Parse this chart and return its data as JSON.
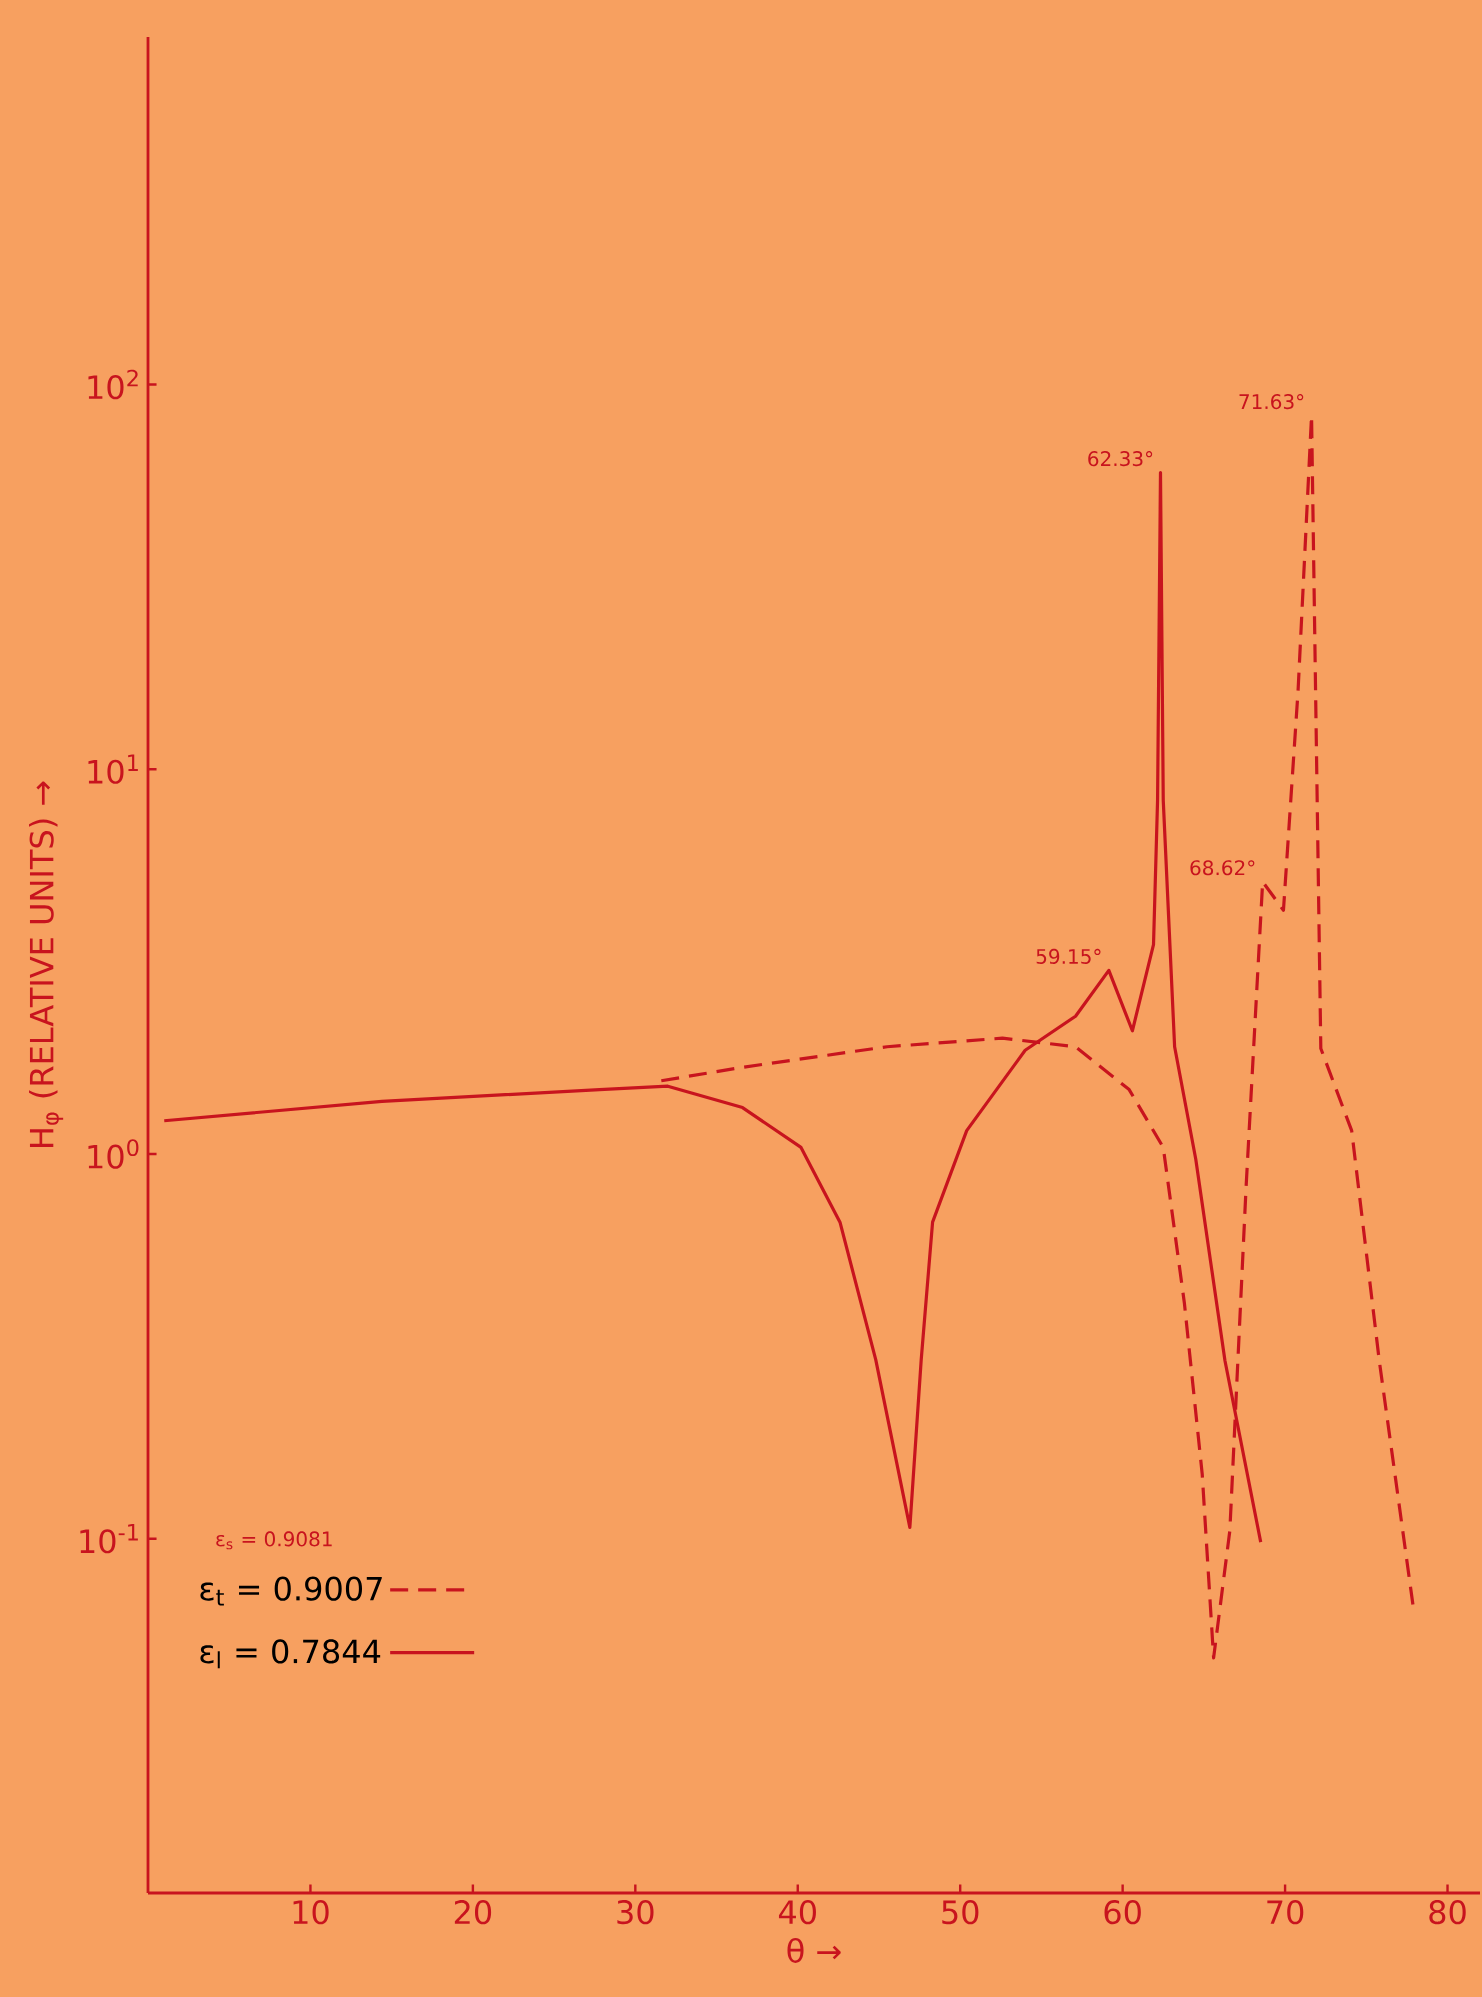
{
  "chart_data": {
    "type": "line",
    "xlabel": "θ →",
    "ylabel": "H$_{φ}$ (RELATIVE UNITS) →",
    "log": "y",
    "xlim": [
      0,
      82
    ],
    "xticks": [
      10,
      20,
      30,
      40,
      50,
      60,
      70,
      80
    ],
    "ylim": [
      0.012,
      800
    ],
    "yticks": [
      {
        "value": 0.1,
        "label": "10$^{-1}$"
      },
      {
        "value": 1,
        "label": "10$^{0}$"
      },
      {
        "value": 10,
        "label": "10$^{1}$"
      },
      {
        "value": 100,
        "label": "10$^{2}$"
      }
    ],
    "legend": "bottom left",
    "series": [
      {
        "name": "ε$_{t}$ = 0.9007",
        "color": "#c8141e",
        "line_style": "dashed",
        "x": [
          31.6,
          36.6,
          45.5,
          52.6,
          57.1,
          60.4,
          62.5,
          63.8,
          64.9,
          65.6,
          66.6,
          67.6,
          68.62,
          69.9,
          70.8,
          71.63,
          72.2,
          74.1,
          75.8,
          77.9
        ],
        "values": [
          1.55,
          1.68,
          1.9,
          2.0,
          1.9,
          1.47,
          1.04,
          0.41,
          0.147,
          0.049,
          0.105,
          0.82,
          5.1,
          4.3,
          16,
          83,
          1.88,
          1.15,
          0.29,
          0.066
        ]
      },
      {
        "name": "ε$_{l}$ = 0.7844",
        "color": "#c8141e",
        "line_style": "solid",
        "x": [
          1.0,
          14.4,
          27.8,
          32.0,
          36.6,
          40.2,
          42.6,
          44.8,
          46.9,
          47.6,
          48.3,
          50.4,
          54.0,
          57.1,
          59.15,
          60.6,
          61.9,
          62.15,
          62.33,
          62.5,
          63.2,
          64.5,
          66.3,
          68.5
        ],
        "values": [
          1.22,
          1.37,
          1.47,
          1.5,
          1.32,
          1.04,
          0.665,
          0.292,
          0.107,
          0.292,
          0.665,
          1.15,
          1.86,
          2.28,
          3.0,
          2.09,
          3.5,
          8.3,
          59,
          8.3,
          1.9,
          0.97,
          0.29,
          0.098
        ]
      }
    ],
    "annotations": [
      "ε$_{s}$ = 0.9081",
      {
        "text": "59.15°",
        "x": 59.15,
        "y": 3.0
      },
      {
        "text": "62.33°",
        "x": 62.33,
        "y": 59
      },
      {
        "text": "68.62°",
        "x": 68.62,
        "y": 5.1
      },
      {
        "text": "71.63°",
        "x": 71.63,
        "y": 83
      }
    ]
  }
}
